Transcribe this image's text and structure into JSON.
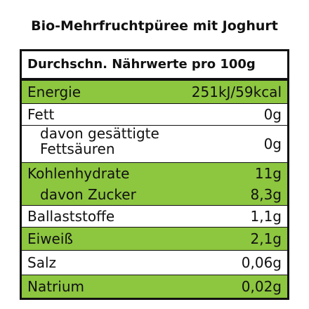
{
  "title": "Bio-Mehrfruchtpüree mit Joghurt",
  "table": {
    "header": "Durchschn. Nährwerte pro 100g",
    "rows": [
      [
        "Energie",
        "251kJ/59kcal"
      ],
      [
        "Fett",
        "0g"
      ],
      [
        "davon gesättigte Fettsäuren",
        "0g"
      ],
      [
        "Kohlenhydrate",
        "11g"
      ],
      [
        "davon Zucker",
        "8,3g"
      ],
      [
        "Ballaststoffe",
        "1,1g"
      ],
      [
        "Eiweiß",
        "2,1g"
      ],
      [
        "Salz",
        "0,06g"
      ],
      [
        "Natrium",
        "0,02g"
      ]
    ]
  }
}
